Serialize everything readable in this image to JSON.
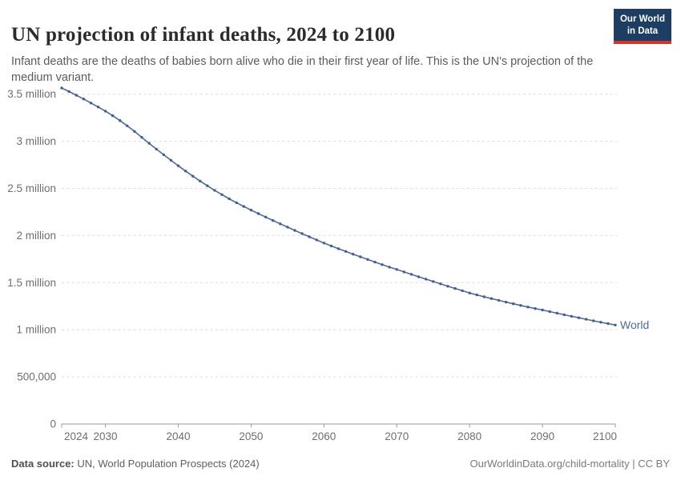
{
  "header": {
    "title": "UN projection of infant deaths, 2024 to 2100",
    "subtitle": "Infant deaths are the deaths of babies born alive who die in their first year of life. This is the UN's projection of the medium variant.",
    "logo": {
      "line1": "Our World",
      "line2": "in Data"
    }
  },
  "footer": {
    "source_label": "Data source:",
    "source_text": " UN, World Population Prospects (2024)",
    "credit": "OurWorldinData.org/child-mortality | CC BY"
  },
  "chart_data": {
    "type": "line",
    "title": "UN projection of infant deaths, 2024 to 2100",
    "xlabel": "",
    "ylabel": "",
    "xlim": [
      2024,
      2100
    ],
    "ylim_millions": [
      0,
      3.6
    ],
    "grid": "horizontal-dashed",
    "legend_position": "end-of-line",
    "x_ticks": [
      2024,
      2030,
      2040,
      2050,
      2060,
      2070,
      2080,
      2090,
      2100
    ],
    "y_ticks": [
      {
        "value_millions": 0,
        "label": "0"
      },
      {
        "value_millions": 0.5,
        "label": "500,000"
      },
      {
        "value_millions": 1,
        "label": "1 million"
      },
      {
        "value_millions": 1.5,
        "label": "1.5 million"
      },
      {
        "value_millions": 2,
        "label": "2 million"
      },
      {
        "value_millions": 2.5,
        "label": "2.5 million"
      },
      {
        "value_millions": 3,
        "label": "3 million"
      },
      {
        "value_millions": 3.5,
        "label": "3.5 million"
      }
    ],
    "x": [
      2024,
      2025,
      2026,
      2027,
      2028,
      2029,
      2030,
      2031,
      2032,
      2033,
      2034,
      2035,
      2036,
      2037,
      2038,
      2039,
      2040,
      2041,
      2042,
      2043,
      2044,
      2045,
      2046,
      2047,
      2048,
      2049,
      2050,
      2051,
      2052,
      2053,
      2054,
      2055,
      2056,
      2057,
      2058,
      2059,
      2060,
      2061,
      2062,
      2063,
      2064,
      2065,
      2066,
      2067,
      2068,
      2069,
      2070,
      2071,
      2072,
      2073,
      2074,
      2075,
      2076,
      2077,
      2078,
      2079,
      2080,
      2081,
      2082,
      2083,
      2084,
      2085,
      2086,
      2087,
      2088,
      2089,
      2090,
      2091,
      2092,
      2093,
      2094,
      2095,
      2096,
      2097,
      2098,
      2099,
      2100
    ],
    "series": [
      {
        "name": "World",
        "color": "#4c6a9c",
        "values_millions": [
          3.565,
          3.528,
          3.489,
          3.449,
          3.407,
          3.364,
          3.32,
          3.272,
          3.22,
          3.164,
          3.104,
          3.042,
          2.979,
          2.917,
          2.857,
          2.798,
          2.74,
          2.684,
          2.63,
          2.578,
          2.528,
          2.48,
          2.434,
          2.39,
          2.348,
          2.308,
          2.27,
          2.233,
          2.196,
          2.16,
          2.124,
          2.089,
          2.054,
          2.02,
          1.986,
          1.953,
          1.92,
          1.89,
          1.86,
          1.831,
          1.802,
          1.774,
          1.746,
          1.718,
          1.691,
          1.665,
          1.64,
          1.614,
          1.588,
          1.562,
          1.537,
          1.512,
          1.487,
          1.462,
          1.438,
          1.414,
          1.39,
          1.37,
          1.35,
          1.331,
          1.312,
          1.294,
          1.276,
          1.258,
          1.241,
          1.225,
          1.21,
          1.193,
          1.176,
          1.159,
          1.143,
          1.127,
          1.111,
          1.095,
          1.08,
          1.065,
          1.05
        ]
      }
    ],
    "colors": {
      "grid": "#dcdcdc",
      "axis": "#999999",
      "tick_text": "#6e6e6e",
      "line": "#4c6a9c",
      "marker": "#42608f"
    }
  }
}
